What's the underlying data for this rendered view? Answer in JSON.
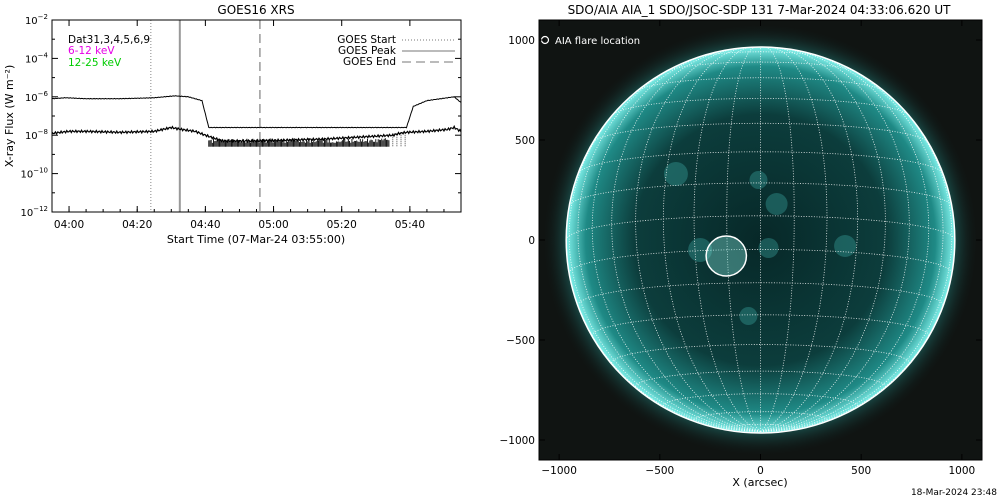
{
  "chart_data": [
    {
      "type": "line",
      "title": "GOES16 XRS",
      "xlabel": "Start Time (07-Mar-24 03:55:00)",
      "ylabel": "X-ray Flux (W m⁻²)",
      "yscale": "log",
      "ylim_exponent": [
        -12,
        -2
      ],
      "y_tick_exponents": [
        -12,
        -10,
        -8,
        -6,
        -4,
        -2
      ],
      "xlim_minutes": [
        0,
        120
      ],
      "x_ticks": [
        {
          "label": "04:00",
          "minute": 5
        },
        {
          "label": "04:20",
          "minute": 25
        },
        {
          "label": "04:40",
          "minute": 45
        },
        {
          "label": "05:00",
          "minute": 65
        },
        {
          "label": "05:20",
          "minute": 85
        },
        {
          "label": "05:40",
          "minute": 105
        }
      ],
      "channel_note": "Dat31,3,4,5,6,9",
      "energy_bands": [
        {
          "name": "6-12 keV",
          "color": "#e600e6"
        },
        {
          "name": "12-25 keV",
          "color": "#00cc00"
        }
      ],
      "legend": [
        {
          "name": "GOES Start",
          "style": "dotted"
        },
        {
          "name": "GOES Peak",
          "style": "solid"
        },
        {
          "name": "GOES End",
          "style": "dashed"
        }
      ],
      "markers_minutes": {
        "start": 29,
        "peak": 37.5,
        "end": 61
      },
      "series": [
        {
          "name": "long",
          "x": [
            0,
            4,
            10,
            20,
            30,
            36,
            40,
            44,
            46,
            50,
            60,
            80,
            100,
            104,
            106,
            110,
            118,
            120
          ],
          "y_exponent": [
            -6.1,
            -6.05,
            -6.1,
            -6.1,
            -6.05,
            -5.95,
            -6.0,
            -6.2,
            -7.6,
            -7.6,
            -7.6,
            -7.6,
            -7.6,
            -7.6,
            -6.5,
            -6.2,
            -6.0,
            -6.3
          ]
        },
        {
          "name": "short",
          "x": [
            0,
            5,
            10,
            20,
            30,
            35,
            38,
            42,
            45,
            50,
            60,
            80,
            100,
            102,
            104,
            110,
            116,
            118,
            120
          ],
          "y_exponent": [
            -7.9,
            -7.8,
            -7.8,
            -7.85,
            -7.8,
            -7.6,
            -7.7,
            -7.8,
            -8.0,
            -8.3,
            -8.3,
            -8.2,
            -8.0,
            -7.9,
            -7.85,
            -7.8,
            -7.7,
            -7.6,
            -7.8
          ]
        }
      ]
    },
    {
      "type": "image",
      "title": "SDO/AIA AIA_1 SDO/JSOC-SDP 131  7-Mar-2024 04:33:06.620 UT",
      "xlabel": "X (arcsec)",
      "ylabel": "",
      "xlim": [
        -1100,
        1100
      ],
      "ylim": [
        -1100,
        1100
      ],
      "x_ticks": [
        -1000,
        -500,
        0,
        500,
        1000
      ],
      "y_ticks": [
        -1000,
        -500,
        0,
        500,
        1000
      ],
      "solar_radius_arcsec": 965,
      "flare_location_arcsec": [
        -170,
        -80
      ],
      "flare_circle_radius_arcsec": 100,
      "legend_label": "AIA flare location",
      "colors": {
        "disk": "#0a3a3a",
        "limb": "#3ad6d0",
        "grid": "#ffffff"
      }
    }
  ],
  "footer": {
    "timestamp": "18-Mar-2024 23:48"
  }
}
